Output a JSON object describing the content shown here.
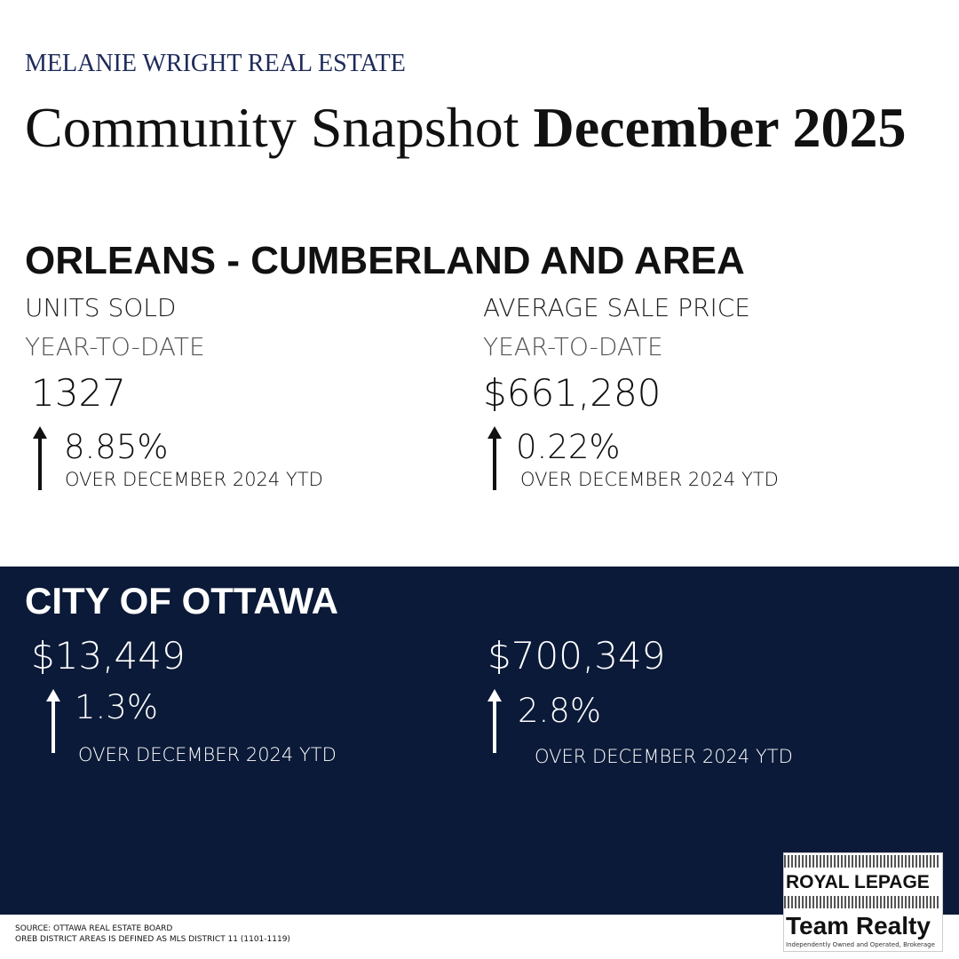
{
  "header": {
    "brand": "MELANIE WRIGHT REAL ESTATE",
    "title_regular": "Community Snapshot",
    "title_bold": "December 2025"
  },
  "area": {
    "title": "ORLEANS - CUMBERLAND AND AREA",
    "stats": [
      {
        "label": "UNITS SOLD",
        "sublabel": "YEAR-TO-DATE",
        "value": "1327",
        "change": "8.85%",
        "note": "OVER DECEMBER 2024 YTD"
      },
      {
        "label": "AVERAGE SALE PRICE",
        "sublabel": "YEAR-TO-DATE",
        "value": "$661,280",
        "change": "0.22%",
        "note": "OVER DECEMBER 2024 YTD"
      }
    ]
  },
  "city": {
    "title": "CITY OF OTTAWA",
    "stats": [
      {
        "value": "$13,449",
        "change": "1.3%",
        "note": "OVER DECEMBER 2024 YTD"
      },
      {
        "value": "$700,349",
        "change": "2.8%",
        "note": "OVER DECEMBER 2024 YTD"
      }
    ]
  },
  "footer": {
    "source": "SOURCE: OTTAWA REAL ESTATE BOARD",
    "definition": "OREB DISTRICT AREAS IS DEFINED AS MLS DISTRICT 11 (1101-1119)"
  },
  "logo": {
    "brand": "ROYAL LEPAGE",
    "team": "Team Realty",
    "tagline": "Independently Owned and Operated, Brokerage"
  }
}
